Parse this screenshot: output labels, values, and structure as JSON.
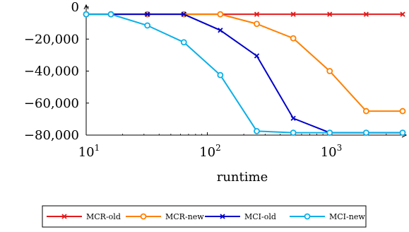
{
  "chart_data": {
    "type": "line",
    "xlabel": "runtime",
    "ylabel": "",
    "xscale": "log",
    "xlim": [
      10,
      4096
    ],
    "ylim": [
      -80000,
      0
    ],
    "xticks": [
      {
        "value": 10,
        "base": "10",
        "exp": "1"
      },
      {
        "value": 100,
        "base": "10",
        "exp": "2"
      },
      {
        "value": 1000,
        "base": "10",
        "exp": "3"
      }
    ],
    "yticks": [
      {
        "value": 0,
        "label": "0"
      },
      {
        "value": -20000,
        "label": "−20,000"
      },
      {
        "value": -40000,
        "label": "−40,000"
      },
      {
        "value": -60000,
        "label": "−60,000"
      },
      {
        "value": -80000,
        "label": "−80,000"
      }
    ],
    "grid": false,
    "legend_position": "bottom",
    "series": [
      {
        "name": "MCR-old",
        "color": "#e41a1c",
        "marker": "x",
        "points": [
          [
            10,
            -4500
          ],
          [
            16,
            -4500
          ],
          [
            32,
            -4500
          ],
          [
            64,
            -4500
          ],
          [
            128,
            -4500
          ],
          [
            256,
            -4500
          ],
          [
            512,
            -4500
          ],
          [
            1024,
            -4500
          ],
          [
            2048,
            -4500
          ],
          [
            4096,
            -4500
          ]
        ]
      },
      {
        "name": "MCR-new",
        "color": "#ff8000",
        "marker": "o",
        "points": [
          [
            10,
            -4500
          ],
          [
            16,
            -4500
          ],
          [
            32,
            -4500
          ],
          [
            64,
            -4500
          ],
          [
            128,
            -4500
          ],
          [
            256,
            -10500
          ],
          [
            512,
            -19500
          ],
          [
            1024,
            -40000
          ],
          [
            2048,
            -65000
          ],
          [
            4096,
            -65000
          ]
        ]
      },
      {
        "name": "MCI-old",
        "color": "#0000cc",
        "marker": "x",
        "points": [
          [
            10,
            -4500
          ],
          [
            16,
            -4500
          ],
          [
            32,
            -4500
          ],
          [
            64,
            -4500
          ],
          [
            128,
            -14500
          ],
          [
            256,
            -30500
          ],
          [
            512,
            -69500
          ],
          [
            1024,
            -78500
          ],
          [
            2048,
            -78500
          ],
          [
            4096,
            -78500
          ]
        ]
      },
      {
        "name": "MCI-new",
        "color": "#0ab0e8",
        "marker": "o",
        "points": [
          [
            10,
            -4500
          ],
          [
            16,
            -4500
          ],
          [
            32,
            -11500
          ],
          [
            64,
            -22000
          ],
          [
            128,
            -42500
          ],
          [
            256,
            -77500
          ],
          [
            512,
            -78500
          ],
          [
            1024,
            -78500
          ],
          [
            2048,
            -78500
          ],
          [
            4096,
            -78500
          ]
        ]
      }
    ]
  }
}
